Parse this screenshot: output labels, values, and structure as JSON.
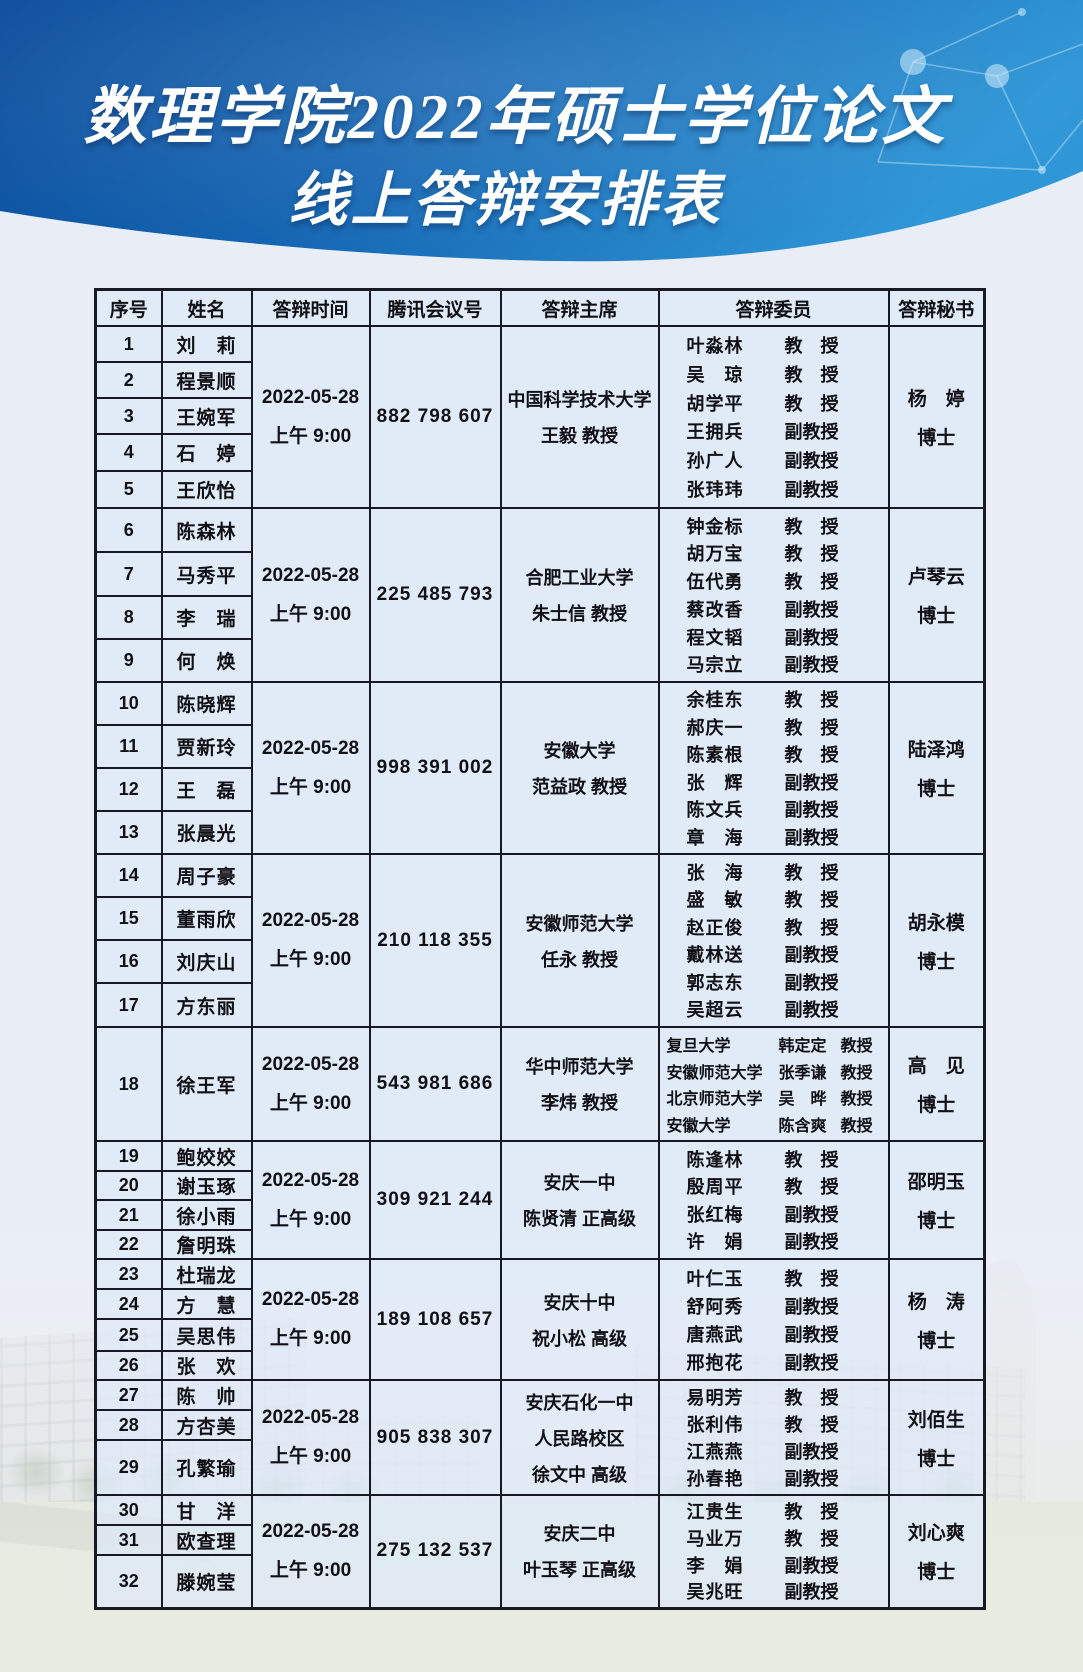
{
  "header": {
    "title_line1": "数理学院2022年硕士学位论文",
    "title_line2": "线上答辩安排表",
    "banner_color_left": "#0b4c9b",
    "banner_color_right": "#2f97d7"
  },
  "table": {
    "columns": [
      "序号",
      "姓名",
      "答辩时间",
      "腾讯会议号",
      "答辩主席",
      "答辩委员",
      "答辩秘书"
    ],
    "groups": [
      {
        "students": [
          {
            "no": "1",
            "name": "刘　莉"
          },
          {
            "no": "2",
            "name": "程景顺"
          },
          {
            "no": "3",
            "name": "王婉军"
          },
          {
            "no": "4",
            "name": "石　婷"
          },
          {
            "no": "5",
            "name": "王欣怡"
          }
        ],
        "time": [
          "2022-05-28",
          "上午 9:00"
        ],
        "meeting": "882 798 607",
        "chair": [
          "中国科学技术大学",
          "王毅 教授"
        ],
        "committee": [
          {
            "name": "叶淼林",
            "title": "教　授"
          },
          {
            "name": "吴　琼",
            "title": "教　授"
          },
          {
            "name": "胡学平",
            "title": "教　授"
          },
          {
            "name": "王拥兵",
            "title": "副教授"
          },
          {
            "name": "孙广人",
            "title": "副教授"
          },
          {
            "name": "张玮玮",
            "title": "副教授"
          }
        ],
        "secretary": [
          "杨　婷",
          "博士"
        ]
      },
      {
        "students": [
          {
            "no": "6",
            "name": "陈森林"
          },
          {
            "no": "7",
            "name": "马秀平"
          },
          {
            "no": "8",
            "name": "李　瑞"
          },
          {
            "no": "9",
            "name": "何　焕"
          }
        ],
        "time": [
          "2022-05-28",
          "上午 9:00"
        ],
        "meeting": "225 485 793",
        "chair": [
          "合肥工业大学",
          "朱士信 教授"
        ],
        "committee": [
          {
            "name": "钟金标",
            "title": "教　授"
          },
          {
            "name": "胡万宝",
            "title": "教　授"
          },
          {
            "name": "伍代勇",
            "title": "教　授"
          },
          {
            "name": "蔡改香",
            "title": "副教授"
          },
          {
            "name": "程文韬",
            "title": "副教授"
          },
          {
            "name": "马宗立",
            "title": "副教授"
          }
        ],
        "secretary": [
          "卢琴云",
          "博士"
        ]
      },
      {
        "students": [
          {
            "no": "10",
            "name": "陈晓辉"
          },
          {
            "no": "11",
            "name": "贾新玲"
          },
          {
            "no": "12",
            "name": "王　磊"
          },
          {
            "no": "13",
            "name": "张晨光"
          }
        ],
        "time": [
          "2022-05-28",
          "上午 9:00"
        ],
        "meeting": "998 391 002",
        "chair": [
          "安徽大学",
          "范益政 教授"
        ],
        "committee": [
          {
            "name": "余桂东",
            "title": "教　授"
          },
          {
            "name": "郝庆一",
            "title": "教　授"
          },
          {
            "name": "陈素根",
            "title": "教　授"
          },
          {
            "name": "张　辉",
            "title": "副教授"
          },
          {
            "name": "陈文兵",
            "title": "副教授"
          },
          {
            "name": "章　海",
            "title": "副教授"
          }
        ],
        "secretary": [
          "陆泽鸿",
          "博士"
        ]
      },
      {
        "students": [
          {
            "no": "14",
            "name": "周子豪"
          },
          {
            "no": "15",
            "name": "董雨欣"
          },
          {
            "no": "16",
            "name": "刘庆山"
          },
          {
            "no": "17",
            "name": "方东丽"
          }
        ],
        "time": [
          "2022-05-28",
          "上午 9:00"
        ],
        "meeting": "210 118 355",
        "chair": [
          "安徽师范大学",
          "任永 教授"
        ],
        "committee": [
          {
            "name": "张　海",
            "title": "教　授"
          },
          {
            "name": "盛　敏",
            "title": "教　授"
          },
          {
            "name": "赵正俊",
            "title": "教　授"
          },
          {
            "name": "戴林送",
            "title": "副教授"
          },
          {
            "name": "郭志东",
            "title": "副教授"
          },
          {
            "name": "吴超云",
            "title": "副教授"
          }
        ],
        "secretary": [
          "胡永模",
          "博士"
        ]
      },
      {
        "students": [
          {
            "no": "18",
            "name": "徐王军"
          }
        ],
        "time": [
          "2022-05-28",
          "上午 9:00"
        ],
        "meeting": "543 981 686",
        "chair": [
          "华中师范大学",
          "李炜 教授"
        ],
        "committee": [
          {
            "org": "复旦大学",
            "name": "韩定定",
            "title": "教授"
          },
          {
            "org": "安徽师范大学",
            "name": "张季谦",
            "title": "教授"
          },
          {
            "org": "北京师范大学",
            "name": "吴　晔",
            "title": "教授"
          },
          {
            "org": "安徽大学",
            "name": "陈含爽",
            "title": "教授"
          }
        ],
        "secretary": [
          "高　见",
          "博士"
        ]
      },
      {
        "students": [
          {
            "no": "19",
            "name": "鲍姣姣"
          },
          {
            "no": "20",
            "name": "谢玉琢"
          },
          {
            "no": "21",
            "name": "徐小雨"
          },
          {
            "no": "22",
            "name": "詹明珠"
          }
        ],
        "time": [
          "2022-05-28",
          "上午 9:00"
        ],
        "meeting": "309 921 244",
        "chair": [
          "安庆一中",
          "陈贤清 正高级"
        ],
        "committee": [
          {
            "name": "陈逢林",
            "title": "教　授"
          },
          {
            "name": "殷周平",
            "title": "教　授"
          },
          {
            "name": "张红梅",
            "title": "副教授"
          },
          {
            "name": "许　娟",
            "title": "副教授"
          }
        ],
        "secretary": [
          "邵明玉",
          "博士"
        ]
      },
      {
        "students": [
          {
            "no": "23",
            "name": "杜瑞龙"
          },
          {
            "no": "24",
            "name": "方　慧"
          },
          {
            "no": "25",
            "name": "吴思伟"
          },
          {
            "no": "26",
            "name": "张　欢"
          }
        ],
        "time": [
          "2022-05-28",
          "上午 9:00"
        ],
        "meeting": "189 108 657",
        "chair": [
          "安庆十中",
          "祝小松 高级"
        ],
        "committee": [
          {
            "name": "叶仁玉",
            "title": "教　授"
          },
          {
            "name": "舒阿秀",
            "title": "副教授"
          },
          {
            "name": "唐燕武",
            "title": "副教授"
          },
          {
            "name": "邢抱花",
            "title": "副教授"
          }
        ],
        "secretary": [
          "杨　涛",
          "博士"
        ]
      },
      {
        "students": [
          {
            "no": "27",
            "name": "陈　帅"
          },
          {
            "no": "28",
            "name": "方杏美"
          },
          {
            "no": "29",
            "name": "孔繁瑜"
          }
        ],
        "time": [
          "2022-05-28",
          "上午 9:00"
        ],
        "meeting": "905 838 307",
        "chair": [
          "安庆石化一中",
          "人民路校区",
          "徐文中 高级"
        ],
        "committee": [
          {
            "name": "易明芳",
            "title": "教　授"
          },
          {
            "name": "张利伟",
            "title": "教　授"
          },
          {
            "name": "江燕燕",
            "title": "副教授"
          },
          {
            "name": "孙春艳",
            "title": "副教授"
          }
        ],
        "secretary": [
          "刘佰生",
          "博士"
        ]
      },
      {
        "students": [
          {
            "no": "30",
            "name": "甘　洋"
          },
          {
            "no": "31",
            "name": "欧查理"
          },
          {
            "no": "32",
            "name": "滕婉莹"
          }
        ],
        "time": [
          "2022-05-28",
          "上午 9:00"
        ],
        "meeting": "275 132 537",
        "chair": [
          "安庆二中",
          "叶玉琴 正高级"
        ],
        "committee": [
          {
            "name": "江贵生",
            "title": "教　授"
          },
          {
            "name": "马业万",
            "title": "教　授"
          },
          {
            "name": "李　娟",
            "title": "副教授"
          },
          {
            "name": "吴兆旺",
            "title": "副教授"
          }
        ],
        "secretary": [
          "刘心爽",
          "博士"
        ]
      }
    ]
  }
}
